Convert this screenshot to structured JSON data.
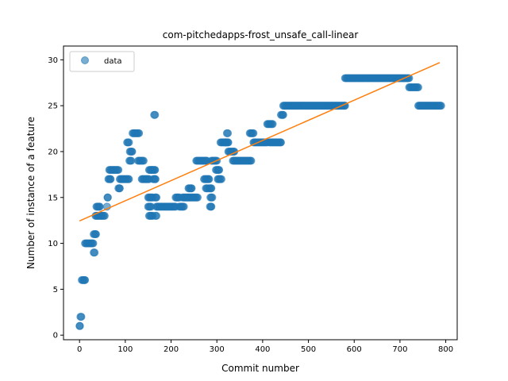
{
  "chart_data": {
    "type": "scatter",
    "title": "com-pitchedapps-frost_unsafe_call-linear",
    "xlabel": "Commit number",
    "ylabel": "Number of instance of a feature",
    "xlim": [
      -35,
      825
    ],
    "ylim": [
      -0.5,
      31.5
    ],
    "xticks": [
      0,
      100,
      200,
      300,
      400,
      500,
      600,
      700,
      800
    ],
    "yticks": [
      0,
      5,
      10,
      15,
      20,
      25,
      30
    ],
    "grid": false,
    "legend": {
      "placement": "top-left",
      "entries": [
        "data"
      ]
    },
    "colors": {
      "points": "#1f77b4",
      "fit": "#ff7f0e"
    },
    "series": [
      {
        "name": "data",
        "style": "points",
        "segments": [
          [
            0,
            1,
            1
          ],
          [
            2,
            4,
            2
          ],
          [
            5,
            12,
            6
          ],
          [
            12,
            30,
            10
          ],
          [
            31,
            33,
            9
          ],
          [
            31,
            36,
            11
          ],
          [
            35,
            40,
            13
          ],
          [
            37,
            44,
            14
          ],
          [
            43,
            55,
            13
          ],
          [
            60,
            60,
            14
          ],
          [
            61,
            62,
            15
          ],
          [
            63,
            68,
            17
          ],
          [
            65,
            85,
            18
          ],
          [
            85,
            88,
            16
          ],
          [
            88,
            108,
            17
          ],
          [
            104,
            108,
            21
          ],
          [
            109,
            113,
            19
          ],
          [
            110,
            115,
            20
          ],
          [
            116,
            130,
            22
          ],
          [
            128,
            140,
            19
          ],
          [
            136,
            152,
            17
          ],
          [
            152,
            158,
            18
          ],
          [
            150,
            160,
            15
          ],
          [
            150,
            156,
            14
          ],
          [
            152,
            160,
            13
          ],
          [
            158,
            165,
            18
          ],
          [
            161,
            166,
            17
          ],
          [
            163,
            165,
            24
          ],
          [
            165,
            168,
            15
          ],
          [
            166,
            168,
            13
          ],
          [
            168,
            210,
            14
          ],
          [
            210,
            218,
            15
          ],
          [
            218,
            228,
            14
          ],
          [
            225,
            238,
            15
          ],
          [
            238,
            245,
            16
          ],
          [
            240,
            258,
            15
          ],
          [
            255,
            278,
            19
          ],
          [
            272,
            283,
            17
          ],
          [
            276,
            280,
            16
          ],
          [
            283,
            288,
            16
          ],
          [
            285,
            288,
            14
          ],
          [
            286,
            290,
            15
          ],
          [
            288,
            300,
            19
          ],
          [
            298,
            305,
            18
          ],
          [
            302,
            310,
            17
          ],
          [
            308,
            320,
            21
          ],
          [
            318,
            325,
            21
          ],
          [
            322,
            324,
            22
          ],
          [
            325,
            338,
            20
          ],
          [
            335,
            375,
            19
          ],
          [
            372,
            380,
            22
          ],
          [
            380,
            410,
            21
          ],
          [
            410,
            422,
            23
          ],
          [
            415,
            440,
            21
          ],
          [
            440,
            445,
            24
          ],
          [
            445,
            580,
            25
          ],
          [
            580,
            720,
            28
          ],
          [
            720,
            740,
            27
          ],
          [
            740,
            790,
            25
          ]
        ]
      },
      {
        "name": "",
        "style": "line",
        "x": [
          0,
          787
        ],
        "y": [
          12.45,
          29.7
        ]
      }
    ]
  }
}
